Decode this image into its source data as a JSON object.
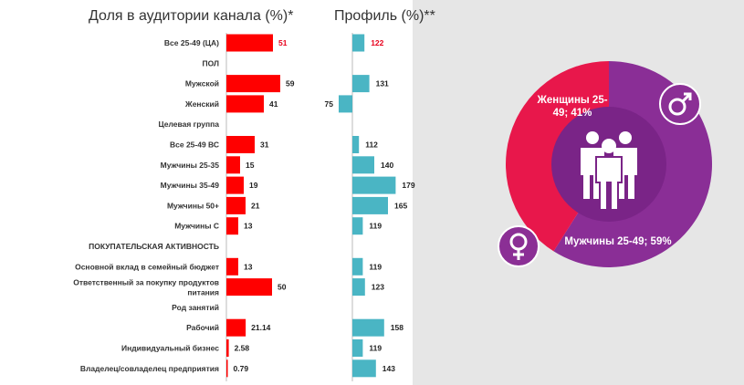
{
  "chart_data": {
    "type": "bar",
    "title_share": "Доля в аудитории канала (%)*",
    "title_profile": "Профиль (%)**",
    "rows": [
      {
        "label": "Все 25-49 (ЦА)",
        "share": 51,
        "share_label": "51",
        "profile": 122,
        "profile_label": "122",
        "highlight": true
      },
      {
        "label": "ПОЛ",
        "header": true
      },
      {
        "label": "Мужской",
        "share": 59,
        "share_label": "59",
        "profile": 131,
        "profile_label": "131"
      },
      {
        "label": "Женский",
        "share": 41,
        "share_label": "41",
        "profile": 75,
        "profile_label": "75"
      },
      {
        "label": "Целевая группа",
        "header": true
      },
      {
        "label": "Все 25-49 ВС",
        "share": 31,
        "share_label": "31",
        "profile": 112,
        "profile_label": "112"
      },
      {
        "label": "Мужчины 25-35",
        "share": 15,
        "share_label": "15",
        "profile": 140,
        "profile_label": "140"
      },
      {
        "label": "Мужчины 35-49",
        "share": 19,
        "share_label": "19",
        "profile": 179,
        "profile_label": "179"
      },
      {
        "label": "Мужчины 50+",
        "share": 21,
        "share_label": "21",
        "profile": 165,
        "profile_label": "165"
      },
      {
        "label": "Мужчины С",
        "share": 13,
        "share_label": "13",
        "profile": 119,
        "profile_label": "119"
      },
      {
        "label": "ПОКУПАТЕЛЬСКАЯ АКТИВНОСТЬ",
        "header": true
      },
      {
        "label": "Основной вклад в семейный бюджет",
        "share": 13,
        "share_label": "13",
        "profile": 119,
        "profile_label": "119"
      },
      {
        "label": "Ответственный за покупку продуктов питания",
        "share": 50,
        "share_label": "50",
        "profile": 123,
        "profile_label": "123"
      },
      {
        "label": "Род занятий",
        "header": true
      },
      {
        "label": "Рабочий",
        "share": 21.14,
        "share_label": "21.14",
        "profile": 158,
        "profile_label": "158"
      },
      {
        "label": "Индивидуальный бизнес",
        "share": 2.58,
        "share_label": "2.58",
        "profile": 119,
        "profile_label": "119"
      },
      {
        "label": "Владелец/совладелец предприятия",
        "share": 0.79,
        "share_label": "0.79",
        "profile": 143,
        "profile_label": "143"
      }
    ],
    "profile_baseline": 100,
    "pie": {
      "type": "pie",
      "slices": [
        {
          "name": "Женщины 25-49; 41%",
          "value": 41
        },
        {
          "name": "Мужчины 25-49; 59%",
          "value": 59
        }
      ]
    }
  },
  "colors": {
    "share_bar": "#ff0000",
    "profile_bar": "#4ab5c4",
    "women": "#e8174b",
    "men": "#8a2e96",
    "highlight_text": "#e8001c"
  },
  "icons": {
    "male": "male-symbol-icon",
    "female": "female-symbol-icon",
    "people": "people-group-icon"
  }
}
